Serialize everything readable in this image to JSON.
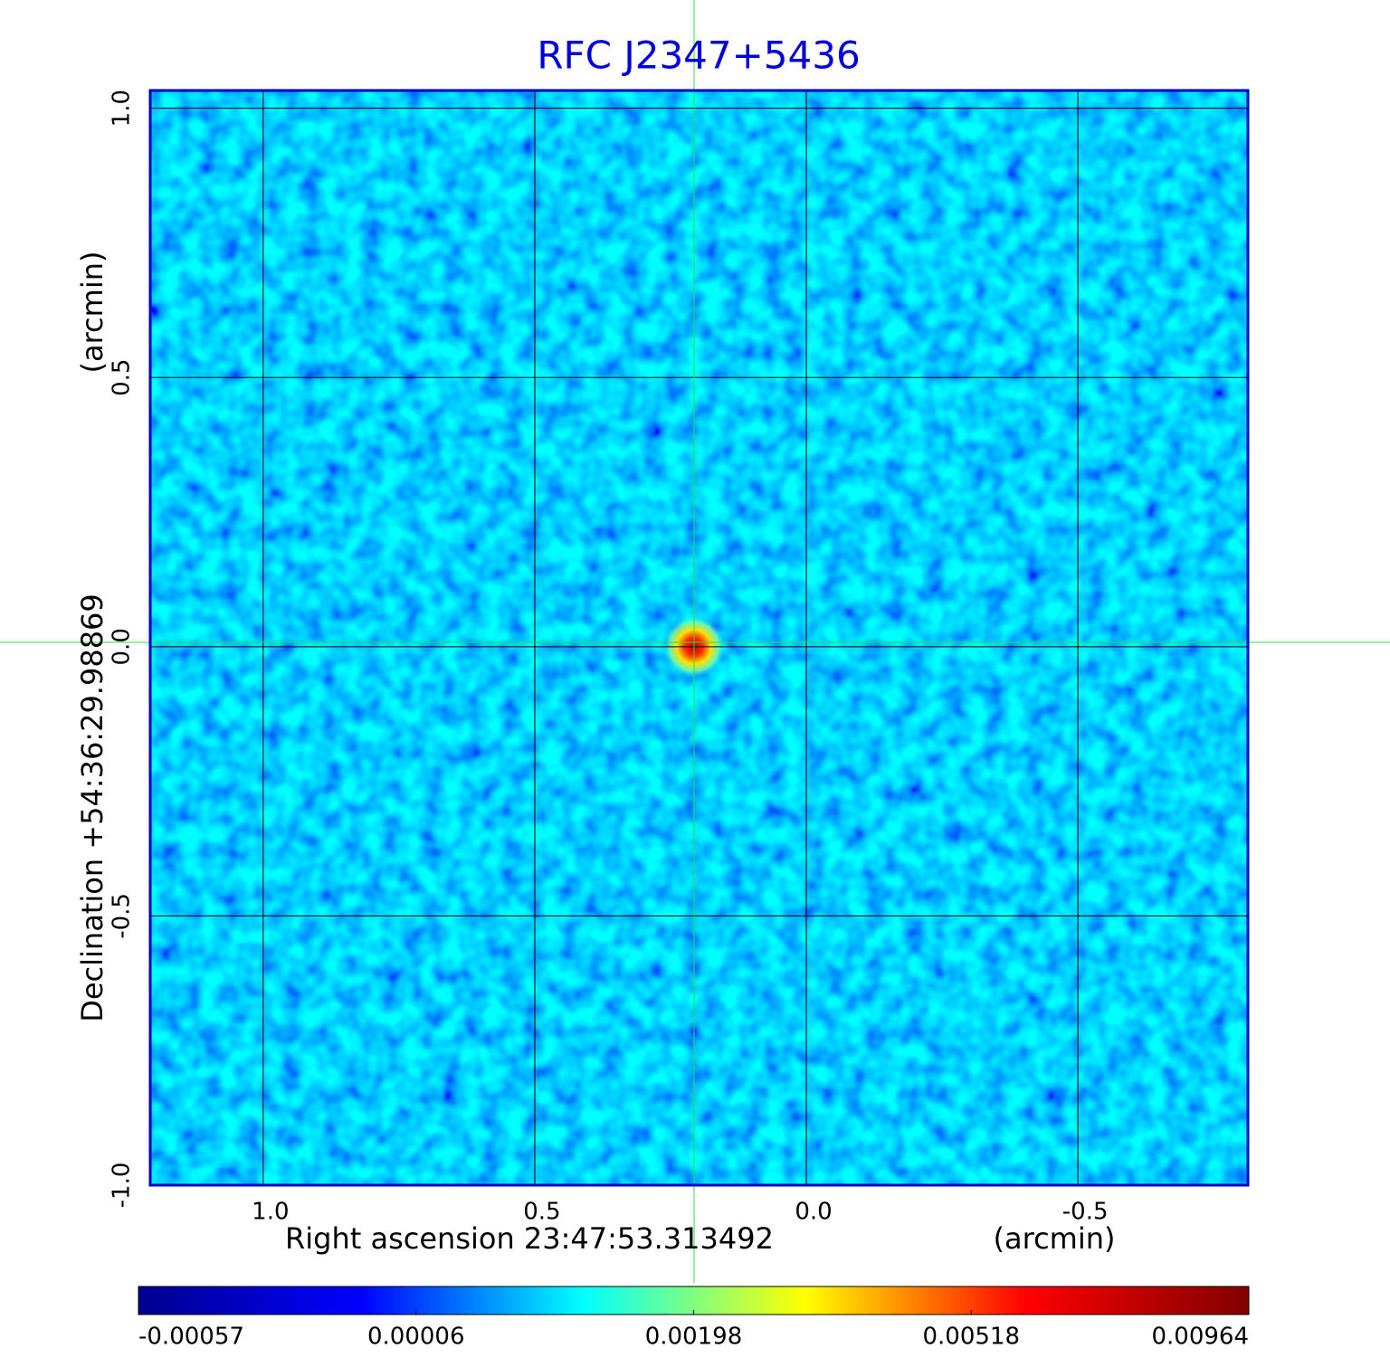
{
  "chart_data": {
    "type": "image",
    "title": "RFC J2347+5436",
    "xlabel": "Right ascension  23:47:53.313492",
    "xunit": "(arcmin)",
    "ylabel": "Declination  +54:36:29.98869",
    "yunit": "(arcmin)",
    "xlim": [
      1.208,
      -0.813
    ],
    "ylim": [
      -1.0,
      1.033
    ],
    "xticks": [
      {
        "value": 1.0,
        "label": "1.0"
      },
      {
        "value": 0.5,
        "label": "0.5"
      },
      {
        "value": 0,
        "label": "0.0"
      },
      {
        "value": -0.5,
        "label": "-0.5"
      }
    ],
    "yticks": [
      {
        "value": -1.0,
        "label": "-1.0"
      },
      {
        "value": -0.5,
        "label": "-0.5"
      },
      {
        "value": 0,
        "label": "0.0"
      },
      {
        "value": 0.5,
        "label": "0.5"
      },
      {
        "value": 1.0,
        "label": "1.0"
      }
    ],
    "grid": true,
    "title_color": "#0000dd",
    "frame_color": "#0000cc",
    "colormap": "jet",
    "colorbar_ticks": [
      -0.00057,
      6e-05,
      0.00198,
      0.00518,
      0.00964
    ],
    "sources": [
      {
        "x": 0.207,
        "y": 0,
        "value": 0.00964
      }
    ]
  }
}
